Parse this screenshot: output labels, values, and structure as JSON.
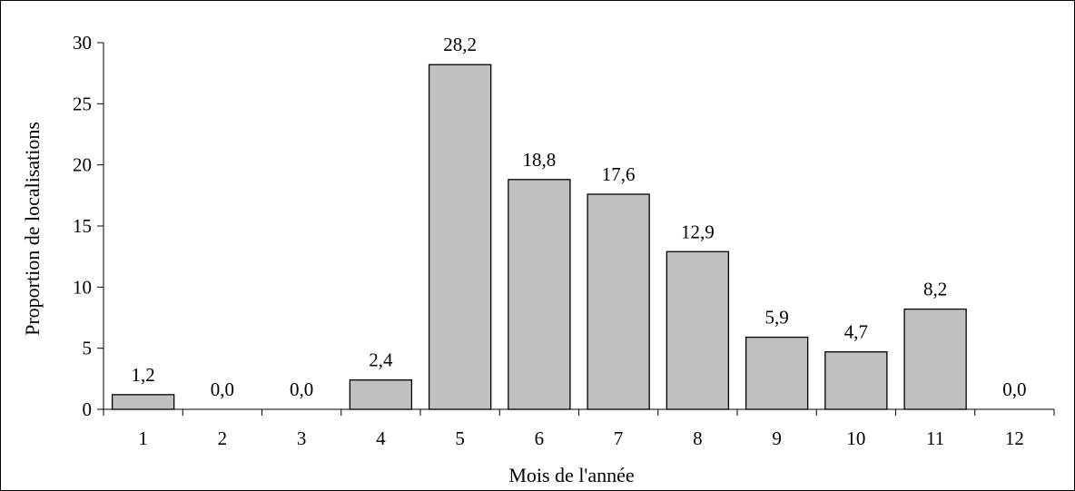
{
  "chart_data": {
    "type": "bar",
    "categories": [
      "1",
      "2",
      "3",
      "4",
      "5",
      "6",
      "7",
      "8",
      "9",
      "10",
      "11",
      "12"
    ],
    "values": [
      1.2,
      0.0,
      0.0,
      2.4,
      28.2,
      18.8,
      17.6,
      12.9,
      5.9,
      4.7,
      8.2,
      0.0
    ],
    "data_labels": [
      "1,2",
      "0,0",
      "0,0",
      "2,4",
      "28,2",
      "18,8",
      "17,6",
      "12,9",
      "5,9",
      "4,7",
      "8,2",
      "0,0"
    ],
    "xlabel": "Mois de l'année",
    "ylabel": "Proportion de localisations",
    "ylim": [
      0,
      30
    ],
    "yticks": [
      0,
      5,
      10,
      15,
      20,
      25,
      30
    ],
    "grid": false,
    "legend": false,
    "bar_color": "#c0c0c0",
    "bar_edge_color": "#000000"
  }
}
